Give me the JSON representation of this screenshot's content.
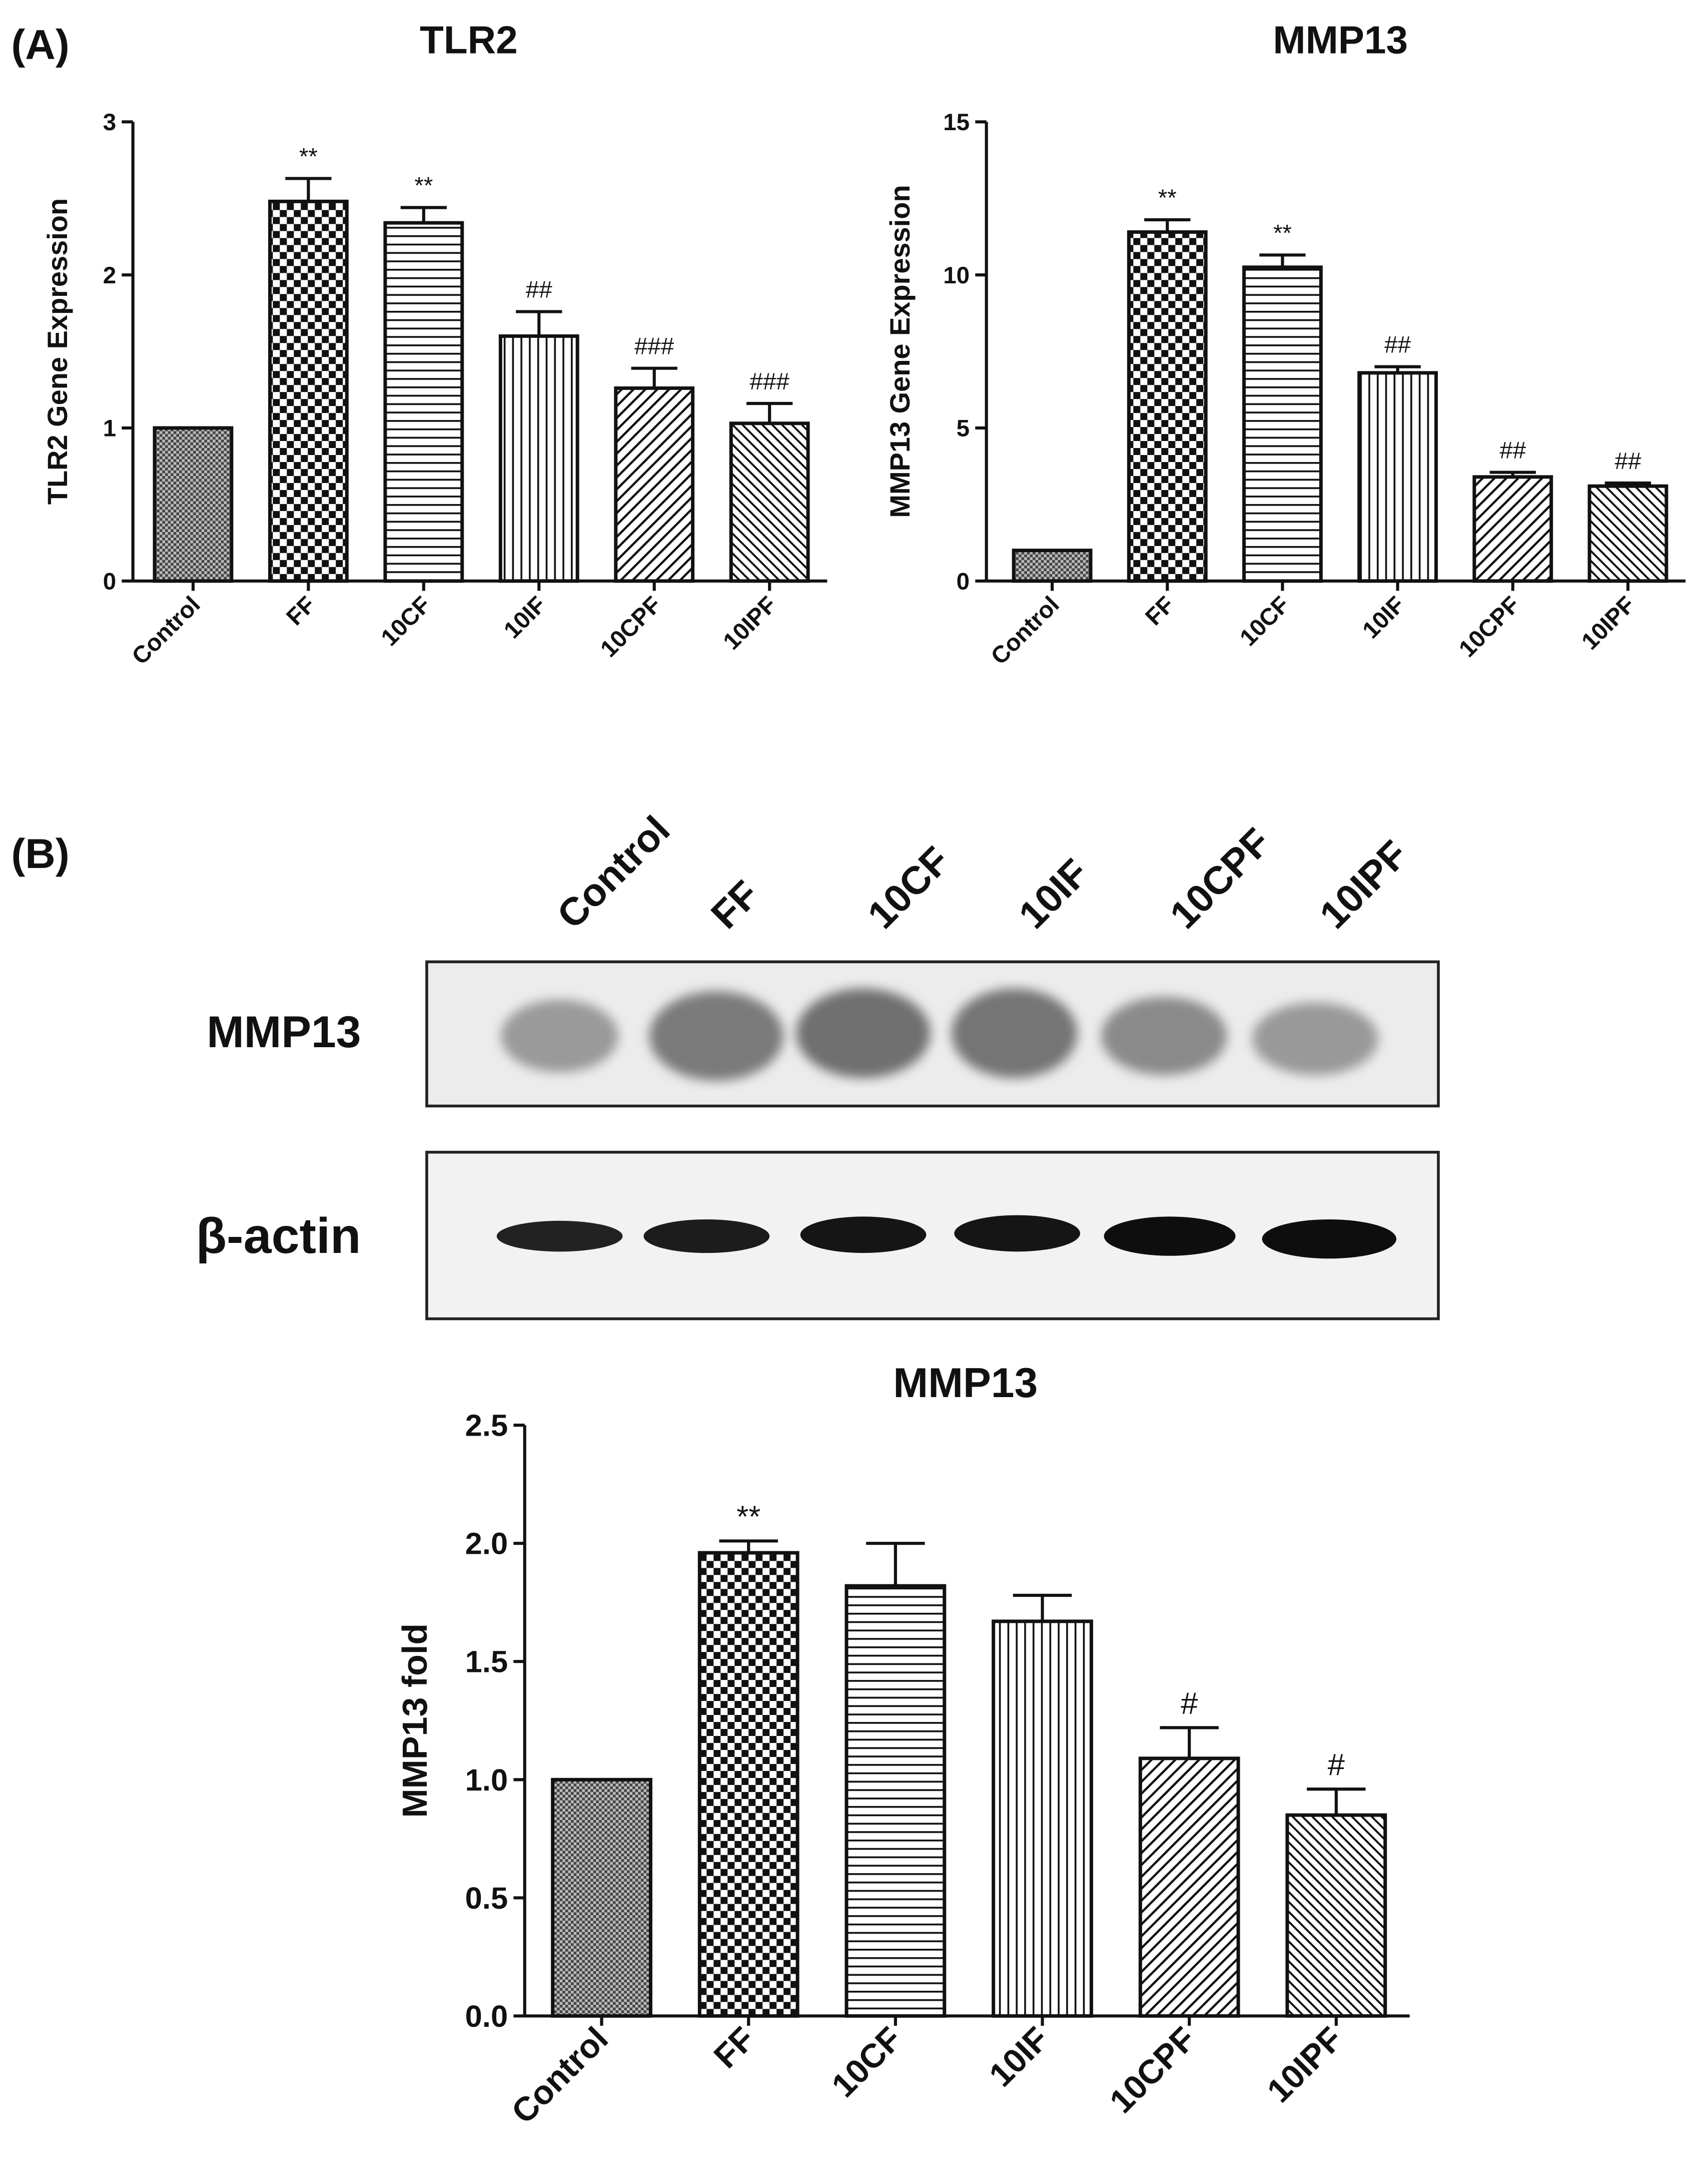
{
  "panel_labels": [
    "(A)",
    "(B)"
  ],
  "blot": {
    "lanes": [
      "Control",
      "FF",
      "10CF",
      "10IF",
      "10CPF",
      "10IPF"
    ],
    "rows": [
      "MMP13",
      "β-actin"
    ]
  },
  "chart_data": [
    {
      "type": "bar",
      "title": "TLR2",
      "y_label": "TLR2 Gene Expression",
      "categories": [
        "Control",
        "FF",
        "10CF",
        "10IF",
        "10CPF",
        "10IPF"
      ],
      "values": [
        1.0,
        2.48,
        2.34,
        1.6,
        1.26,
        1.03
      ],
      "errors": [
        0,
        0.15,
        0.1,
        0.16,
        0.13,
        0.13
      ],
      "annotations": [
        null,
        "**",
        "**",
        "##",
        "###",
        "###"
      ],
      "ylim": [
        0,
        3
      ],
      "yticks": [
        0,
        1,
        2,
        3
      ]
    },
    {
      "type": "bar",
      "title": "MMP13",
      "y_label": "MMP13 Gene Expression",
      "categories": [
        "Control",
        "FF",
        "10CF",
        "10IF",
        "10CPF",
        "10IPF"
      ],
      "values": [
        1.0,
        11.4,
        10.25,
        6.8,
        3.4,
        3.1
      ],
      "errors": [
        0,
        0.4,
        0.4,
        0.2,
        0.15,
        0.1
      ],
      "annotations": [
        null,
        "**",
        "**",
        "##",
        "##",
        "##"
      ],
      "ylim": [
        0,
        15
      ],
      "yticks": [
        0,
        5,
        10,
        15
      ]
    },
    {
      "type": "bar",
      "title": "MMP13",
      "y_label": "MMP13 fold",
      "categories": [
        "Control",
        "FF",
        "10CF",
        "10IF",
        "10CPF",
        "10IPF"
      ],
      "values": [
        1.0,
        1.96,
        1.82,
        1.67,
        1.09,
        0.85
      ],
      "errors": [
        0,
        0.05,
        0.18,
        0.11,
        0.13,
        0.11
      ],
      "annotations": [
        null,
        "**",
        null,
        null,
        "#",
        "#"
      ],
      "ylim": [
        0,
        2.5
      ],
      "yticks": [
        {
          "value": 0,
          "label": "0.0"
        },
        0.5,
        {
          "value": 1,
          "label": "1.0"
        },
        1.5,
        {
          "value": 2,
          "label": "2.0"
        },
        2.5
      ]
    }
  ]
}
